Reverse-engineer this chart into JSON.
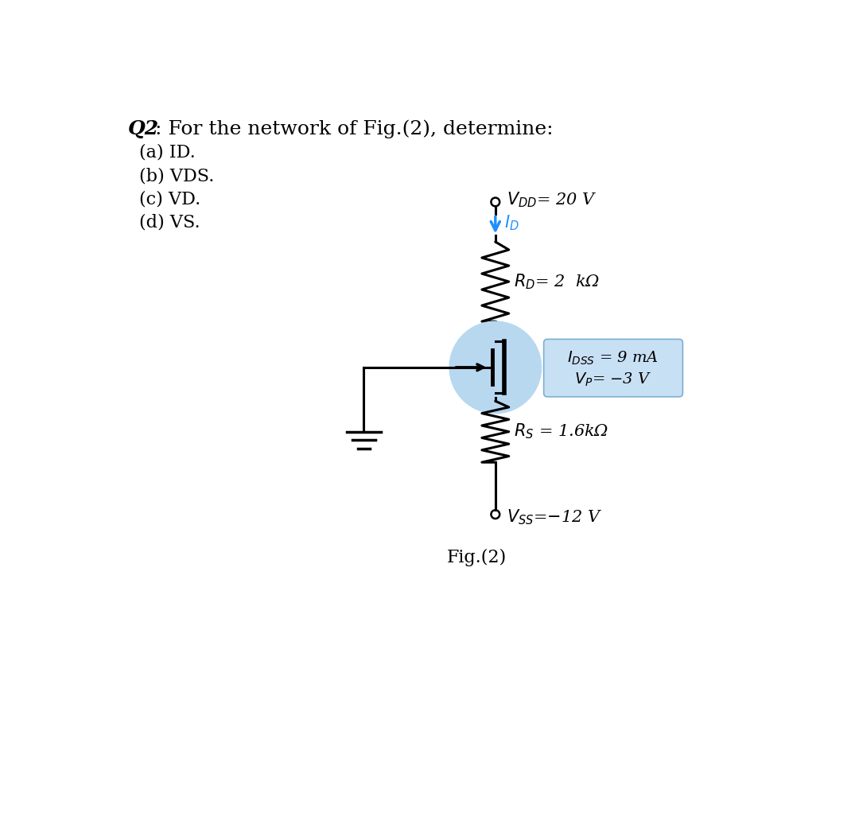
{
  "title_q": "Q2",
  "title_text": ": For the network of Fig.(2), determine:",
  "parts": [
    "(a) ID.",
    "(b) VDS.",
    "(c) VD.",
    "(d) VS."
  ],
  "vdd_label": "$V_{DD}$= 20 V",
  "id_label": "$I_D$",
  "rd_label": "$R_D$= 2  kΩ",
  "idss_label": "$I_{DSS}$ = 9 mA",
  "vp_label": "$V_P$= −3 V",
  "rs_label": "$R_S$ = 1.6kΩ",
  "vss_label": "$V_{SS}$=−12 V",
  "fig_label": "Fig.(2)",
  "bg_color": "#ffffff",
  "circuit_color": "#000000",
  "arrow_color": "#1e90ff",
  "mosfet_circle_color": "#b8d8f0",
  "box_color": "#c8e0f4",
  "text_color": "#000000"
}
